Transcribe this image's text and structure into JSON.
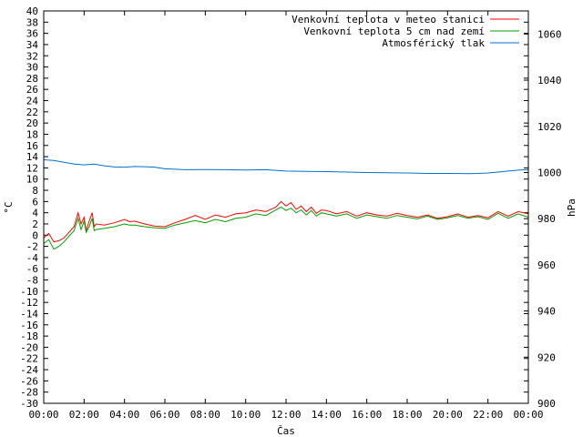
{
  "chart_data": {
    "type": "line",
    "title": "",
    "xlabel": "Čas",
    "ylabel": "°C",
    "y2label": "hPa",
    "x_ticks": [
      "00:00",
      "02:00",
      "04:00",
      "06:00",
      "08:00",
      "10:00",
      "12:00",
      "14:00",
      "16:00",
      "18:00",
      "20:00",
      "22:00",
      "00:00"
    ],
    "x_range_hours": [
      0,
      24
    ],
    "ylim": [
      -30,
      40
    ],
    "y_tick_step": 2,
    "y2lim": [
      900,
      1070
    ],
    "y2_ticks": [
      900,
      920,
      940,
      960,
      980,
      1000,
      1020,
      1040,
      1060
    ],
    "grid": false,
    "legend_position": "top-right",
    "series": [
      {
        "name": "Venkovní teplota v meteo stanici",
        "color": "#ff0000",
        "axis": "left",
        "x": [
          0,
          0.25,
          0.5,
          0.75,
          1.0,
          1.25,
          1.5,
          1.7,
          1.85,
          2.0,
          2.1,
          2.25,
          2.4,
          2.5,
          2.6,
          3.0,
          3.5,
          4.0,
          4.25,
          4.5,
          5.0,
          5.5,
          6.0,
          6.5,
          7.0,
          7.5,
          8.0,
          8.5,
          9.0,
          9.5,
          10.0,
          10.5,
          11.0,
          11.5,
          11.75,
          12.0,
          12.25,
          12.5,
          12.75,
          13.0,
          13.25,
          13.5,
          13.75,
          14.0,
          14.5,
          15.0,
          15.5,
          16.0,
          16.5,
          17.0,
          17.5,
          18.0,
          18.5,
          19.0,
          19.5,
          20.0,
          20.5,
          21.0,
          21.5,
          22.0,
          22.5,
          23.0,
          23.5,
          24.0
        ],
        "values": [
          -0.5,
          0.3,
          -1.2,
          -1.0,
          -0.5,
          0.5,
          1.5,
          4.0,
          2.0,
          3.2,
          0.8,
          2.5,
          4.0,
          1.5,
          2.0,
          1.8,
          2.2,
          2.8,
          2.4,
          2.5,
          2.0,
          1.6,
          1.5,
          2.2,
          2.8,
          3.5,
          2.8,
          3.6,
          3.2,
          3.8,
          4.0,
          4.5,
          4.2,
          5.0,
          6.0,
          5.2,
          5.8,
          4.6,
          5.2,
          4.2,
          5.0,
          3.9,
          4.5,
          4.4,
          3.8,
          4.2,
          3.4,
          4.0,
          3.6,
          3.4,
          3.9,
          3.5,
          3.2,
          3.6,
          3.0,
          3.3,
          3.8,
          3.2,
          3.5,
          3.1,
          4.2,
          3.4,
          4.2,
          3.8
        ]
      },
      {
        "name": "Venkovní teplota 5 cm nad zemí",
        "color": "#00a000",
        "axis": "left",
        "x": [
          0,
          0.25,
          0.5,
          0.75,
          1.0,
          1.25,
          1.5,
          1.7,
          1.85,
          2.0,
          2.1,
          2.25,
          2.4,
          2.5,
          2.6,
          3.0,
          3.5,
          4.0,
          4.25,
          4.5,
          5.0,
          5.5,
          6.0,
          6.5,
          7.0,
          7.5,
          8.0,
          8.5,
          9.0,
          9.5,
          10.0,
          10.5,
          11.0,
          11.5,
          11.75,
          12.0,
          12.25,
          12.5,
          12.75,
          13.0,
          13.25,
          13.5,
          13.75,
          14.0,
          14.5,
          15.0,
          15.5,
          16.0,
          16.5,
          17.0,
          17.5,
          18.0,
          18.5,
          19.0,
          19.5,
          20.0,
          20.5,
          21.0,
          21.5,
          22.0,
          22.5,
          23.0,
          23.5,
          24.0
        ],
        "values": [
          -1.5,
          -0.8,
          -2.5,
          -2.0,
          -1.2,
          -0.2,
          0.8,
          3.0,
          1.0,
          2.5,
          0.5,
          1.5,
          3.0,
          0.8,
          1.0,
          1.2,
          1.5,
          2.0,
          1.8,
          1.8,
          1.5,
          1.3,
          1.2,
          1.8,
          2.2,
          2.6,
          2.2,
          2.8,
          2.4,
          3.0,
          3.2,
          3.8,
          3.5,
          4.5,
          5.0,
          4.4,
          4.8,
          4.0,
          4.5,
          3.6,
          4.4,
          3.4,
          4.0,
          3.8,
          3.4,
          3.8,
          3.0,
          3.6,
          3.3,
          3.0,
          3.5,
          3.2,
          2.9,
          3.4,
          2.8,
          3.1,
          3.5,
          3.0,
          3.3,
          2.8,
          3.9,
          3.0,
          3.8,
          3.2
        ]
      },
      {
        "name": "Atmosférický tlak",
        "color": "#0070d0",
        "axis": "right",
        "x": [
          0,
          0.5,
          1.0,
          1.5,
          2.0,
          2.5,
          3.0,
          3.5,
          4.0,
          4.5,
          5.0,
          5.5,
          6.0,
          7.0,
          8.0,
          9.0,
          10.0,
          11.0,
          12.0,
          13.0,
          14.0,
          15.0,
          16.0,
          17.0,
          18.0,
          19.0,
          20.0,
          21.0,
          21.5,
          22.0,
          22.5,
          23.0,
          23.5,
          24.0
        ],
        "values": [
          1005.5,
          1005.2,
          1004.4,
          1003.7,
          1003.3,
          1003.6,
          1002.9,
          1002.4,
          1002.3,
          1002.6,
          1002.5,
          1002.3,
          1001.6,
          1001.2,
          1001.3,
          1001.2,
          1001.1,
          1001.2,
          1000.6,
          1000.5,
          1000.4,
          1000.2,
          1000.0,
          999.9,
          999.8,
          999.6,
          999.6,
          999.5,
          999.6,
          999.8,
          1000.2,
          1000.6,
          1001.0,
          1001.3
        ]
      }
    ]
  }
}
